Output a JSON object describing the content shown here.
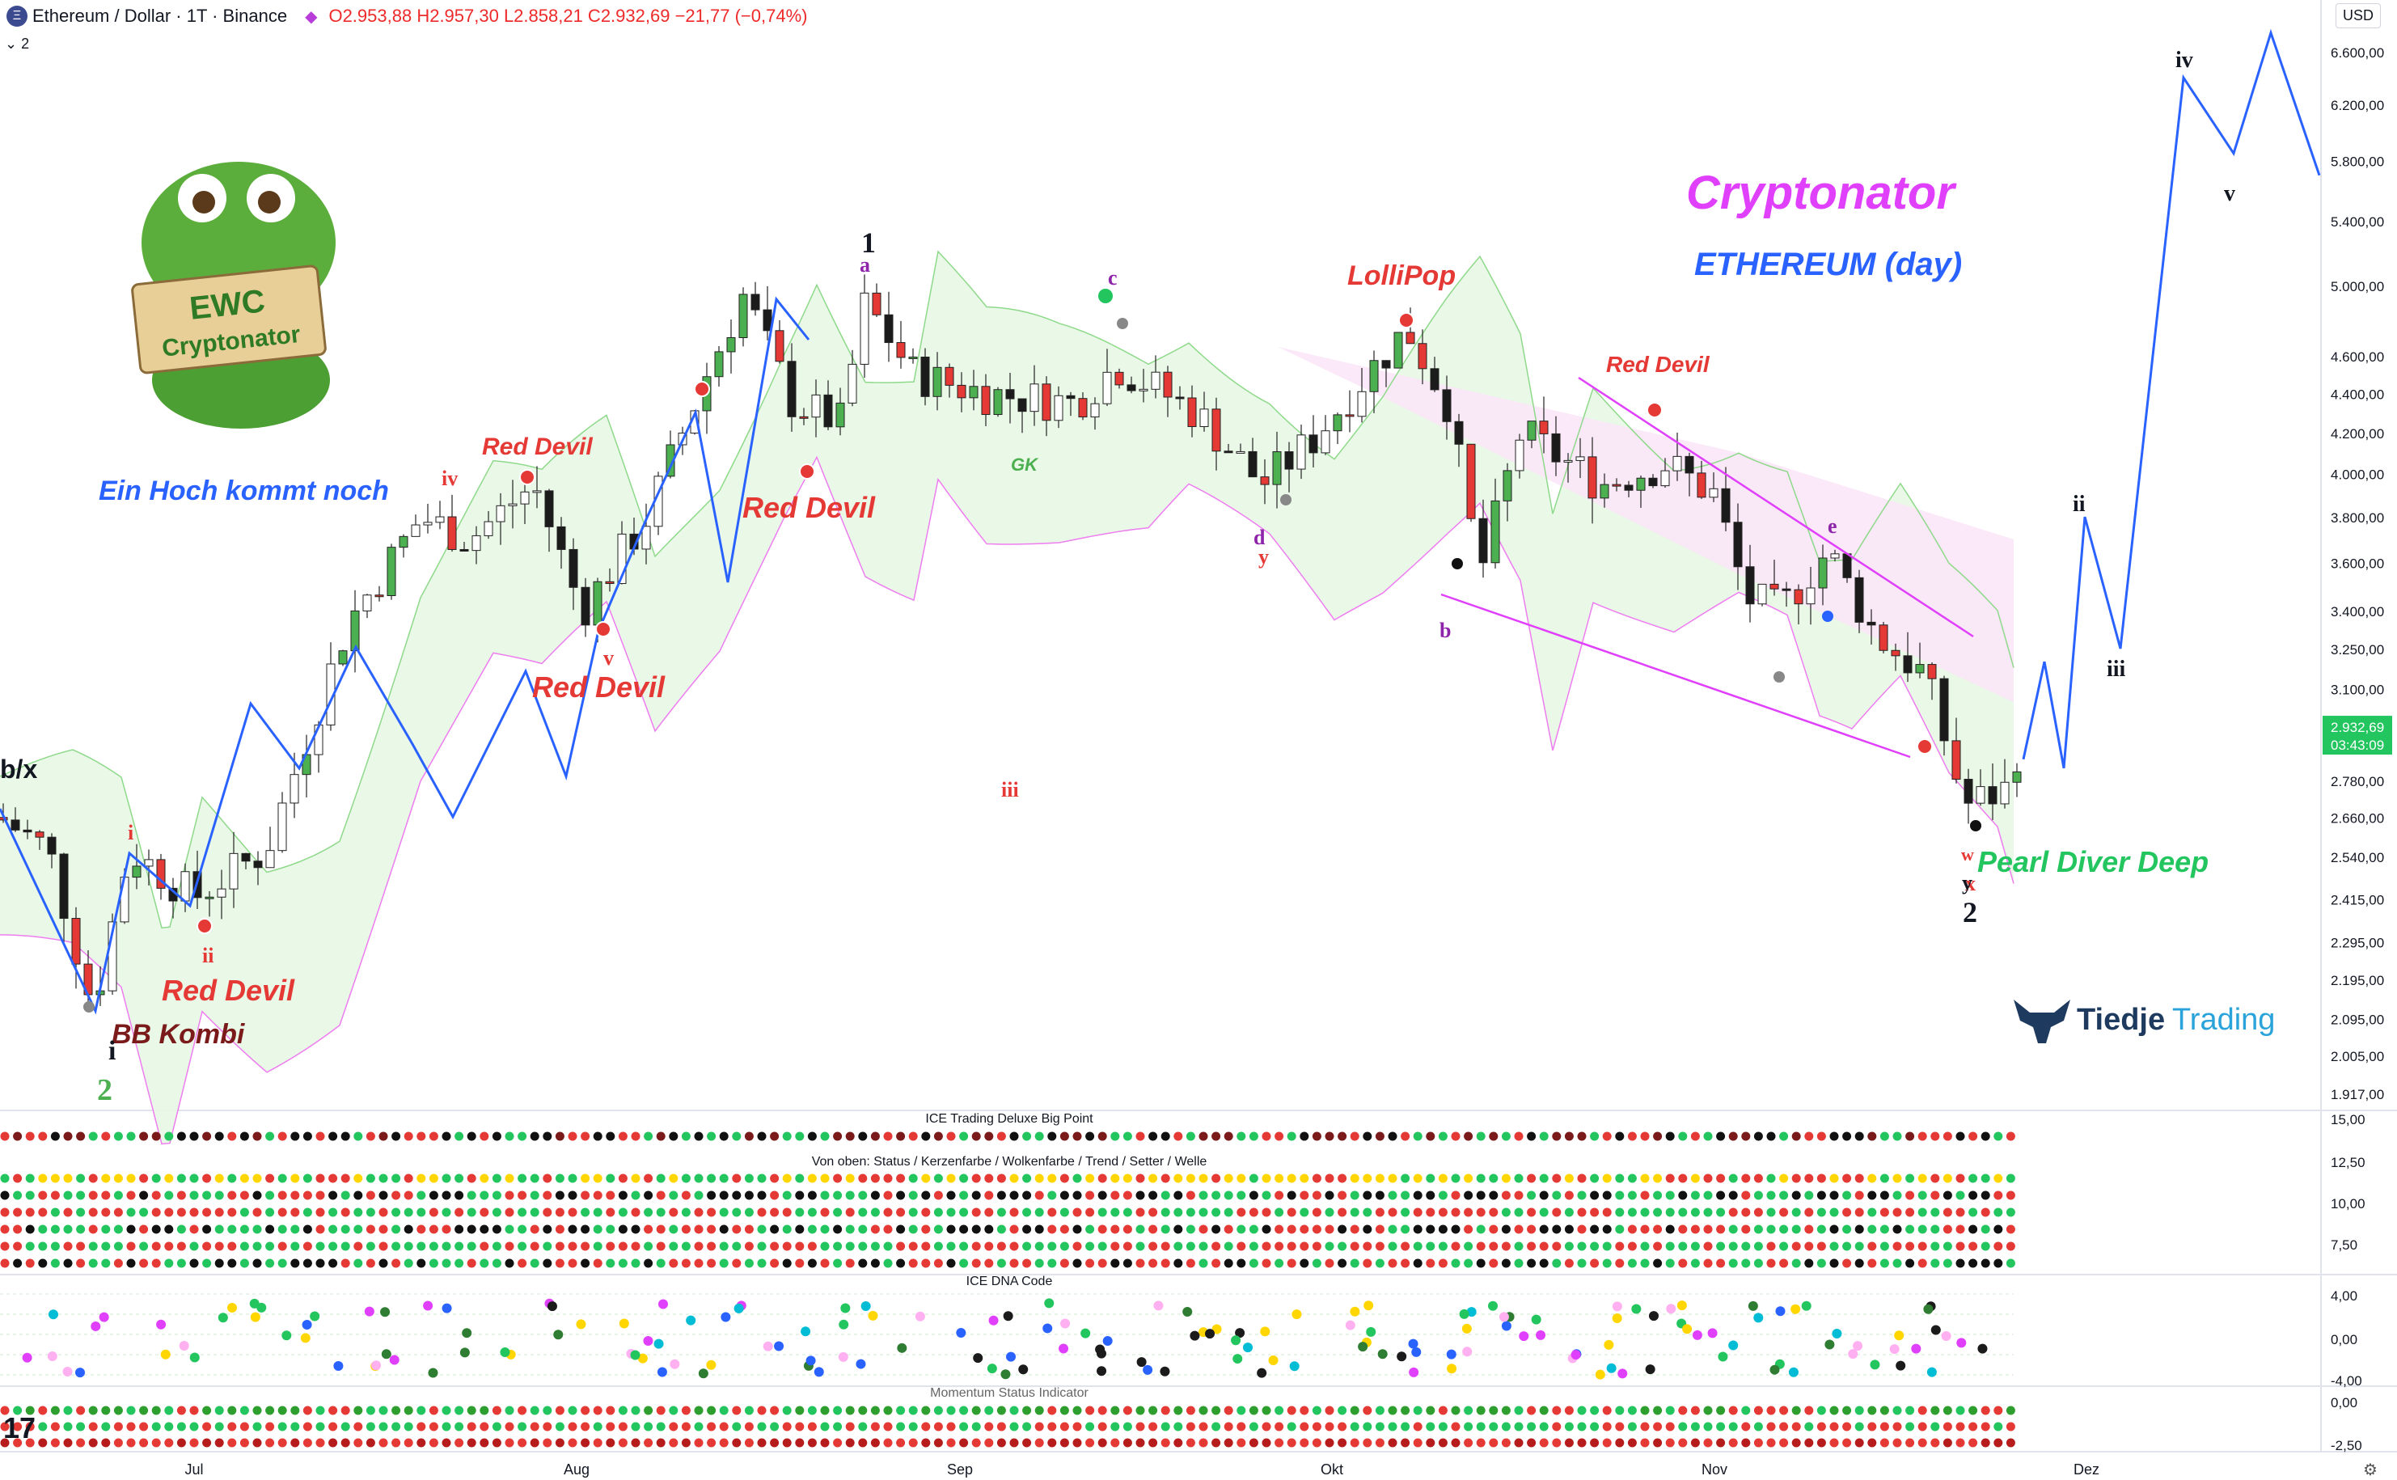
{
  "header": {
    "symbol": "Ethereum / Dollar · 1T · Binance",
    "logo_icon": "ethereum-icon",
    "ohlc_text": "O2.953,88 H2.957,30 L2.858,21 C2.932,69 −21,77 (−0,74%)",
    "indicator_count": "2",
    "currency": "USD"
  },
  "price_scale": {
    "ticks": [
      "6.600,00",
      "6.200,00",
      "5.800,00",
      "5.400,00",
      "5.000,00",
      "4.600,00",
      "4.400,00",
      "4.200,00",
      "4.000,00",
      "3.800,00",
      "3.600,00",
      "3.400,00",
      "3.250,00",
      "3.100,00",
      "2.780,00",
      "2.660,00",
      "2.540,00",
      "2.415,00",
      "2.295,00",
      "2.195,00",
      "2.095,00",
      "2.005,00",
      "1.917,00"
    ],
    "current_price": "2.932,69",
    "countdown": "03:43:09",
    "current_color": "#22c55e"
  },
  "time_axis": {
    "labels": [
      "Jul",
      "Aug",
      "Sep",
      "Okt",
      "Nov",
      "Dez"
    ]
  },
  "overlay_text": {
    "cryptonator_title": "Cryptonator",
    "ethereum_subtitle": "ETHEREUM (day)",
    "ein_hoch": "Ein Hoch kommt noch",
    "ewc_badge_line1": "EWC",
    "ewc_badge_line2": "Cryptonator",
    "brand_name_1": "Tiedje",
    "brand_name_2": "Trading",
    "pearl_diver": "Pearl Diver Deep",
    "lollipop": "LolliPop",
    "bb_kombi": "BB Kombi",
    "gk": "GK",
    "red_devil": "Red Devil",
    "bx": "b/x"
  },
  "wave_labels": [
    {
      "t": "1",
      "c": "#131722"
    },
    {
      "t": "2",
      "c": "#131722"
    },
    {
      "t": "2",
      "c": "#4caf50"
    },
    {
      "t": "i",
      "c": "#e53935"
    },
    {
      "t": "ii",
      "c": "#e53935"
    },
    {
      "t": "iii",
      "c": "#e53935"
    },
    {
      "t": "iv",
      "c": "#e53935"
    },
    {
      "t": "v",
      "c": "#e53935"
    },
    {
      "t": "a",
      "c": "#8e24aa"
    },
    {
      "t": "b",
      "c": "#8e24aa"
    },
    {
      "t": "c",
      "c": "#8e24aa"
    },
    {
      "t": "d",
      "c": "#8e24aa"
    },
    {
      "t": "e",
      "c": "#8e24aa"
    },
    {
      "t": "w",
      "c": "#e53935"
    },
    {
      "t": "x",
      "c": "#e53935"
    },
    {
      "t": "y",
      "c": "#e53935"
    },
    {
      "t": "y",
      "c": "#131722"
    },
    {
      "t": "i",
      "c": "#131722"
    },
    {
      "t": "ii",
      "c": "#131722"
    },
    {
      "t": "iii",
      "c": "#131722"
    },
    {
      "t": "iv",
      "c": "#131722"
    },
    {
      "t": "v",
      "c": "#131722"
    }
  ],
  "panes": {
    "big_point": {
      "title": "ICE Trading Deluxe Big Point",
      "ticks": [
        "15,00",
        "12,50",
        "10,00",
        "7,50"
      ]
    },
    "dna_rows_title": "Von oben: Status / Kerzenfarbe / Wolkenfarbe / Trend / Setter / Welle",
    "dna_code": {
      "title": "ICE DNA Code",
      "ticks": [
        "4,00",
        "0,00",
        "-4,00"
      ]
    },
    "momentum": {
      "title": "Momentum Status Indicator",
      "ticks": [
        "0,00",
        "-2,50"
      ]
    }
  },
  "chart_data": {
    "type": "candlestick",
    "ylabel": "USD",
    "y_scale": "log",
    "ylim": [
      1917,
      6800
    ],
    "x_axis": [
      "Jul",
      "Aug",
      "Sep",
      "Okt",
      "Nov",
      "Dez"
    ],
    "key_points": [
      {
        "label": "2 (Low)",
        "approx_price": 2120
      },
      {
        "label": "1 (High)",
        "approx_price": 4950
      },
      {
        "label": "2 (Low)",
        "approx_price": 2620
      },
      {
        "label": "Current close",
        "price": 2932.69
      }
    ],
    "projection": {
      "series_name": "Wave projection",
      "approx_prices": [
        2850,
        3200,
        2820,
        3800,
        3250,
        6400,
        5850,
        6750,
        5700
      ],
      "labels": [
        "",
        "i",
        "ii",
        "i",
        "ii",
        "iii",
        "iv",
        "v",
        ""
      ]
    },
    "ohlc_last": {
      "open": 2953.88,
      "high": 2957.3,
      "low": 2858.21,
      "close": 2932.69,
      "change": -21.77,
      "change_pct": -0.74
    }
  }
}
